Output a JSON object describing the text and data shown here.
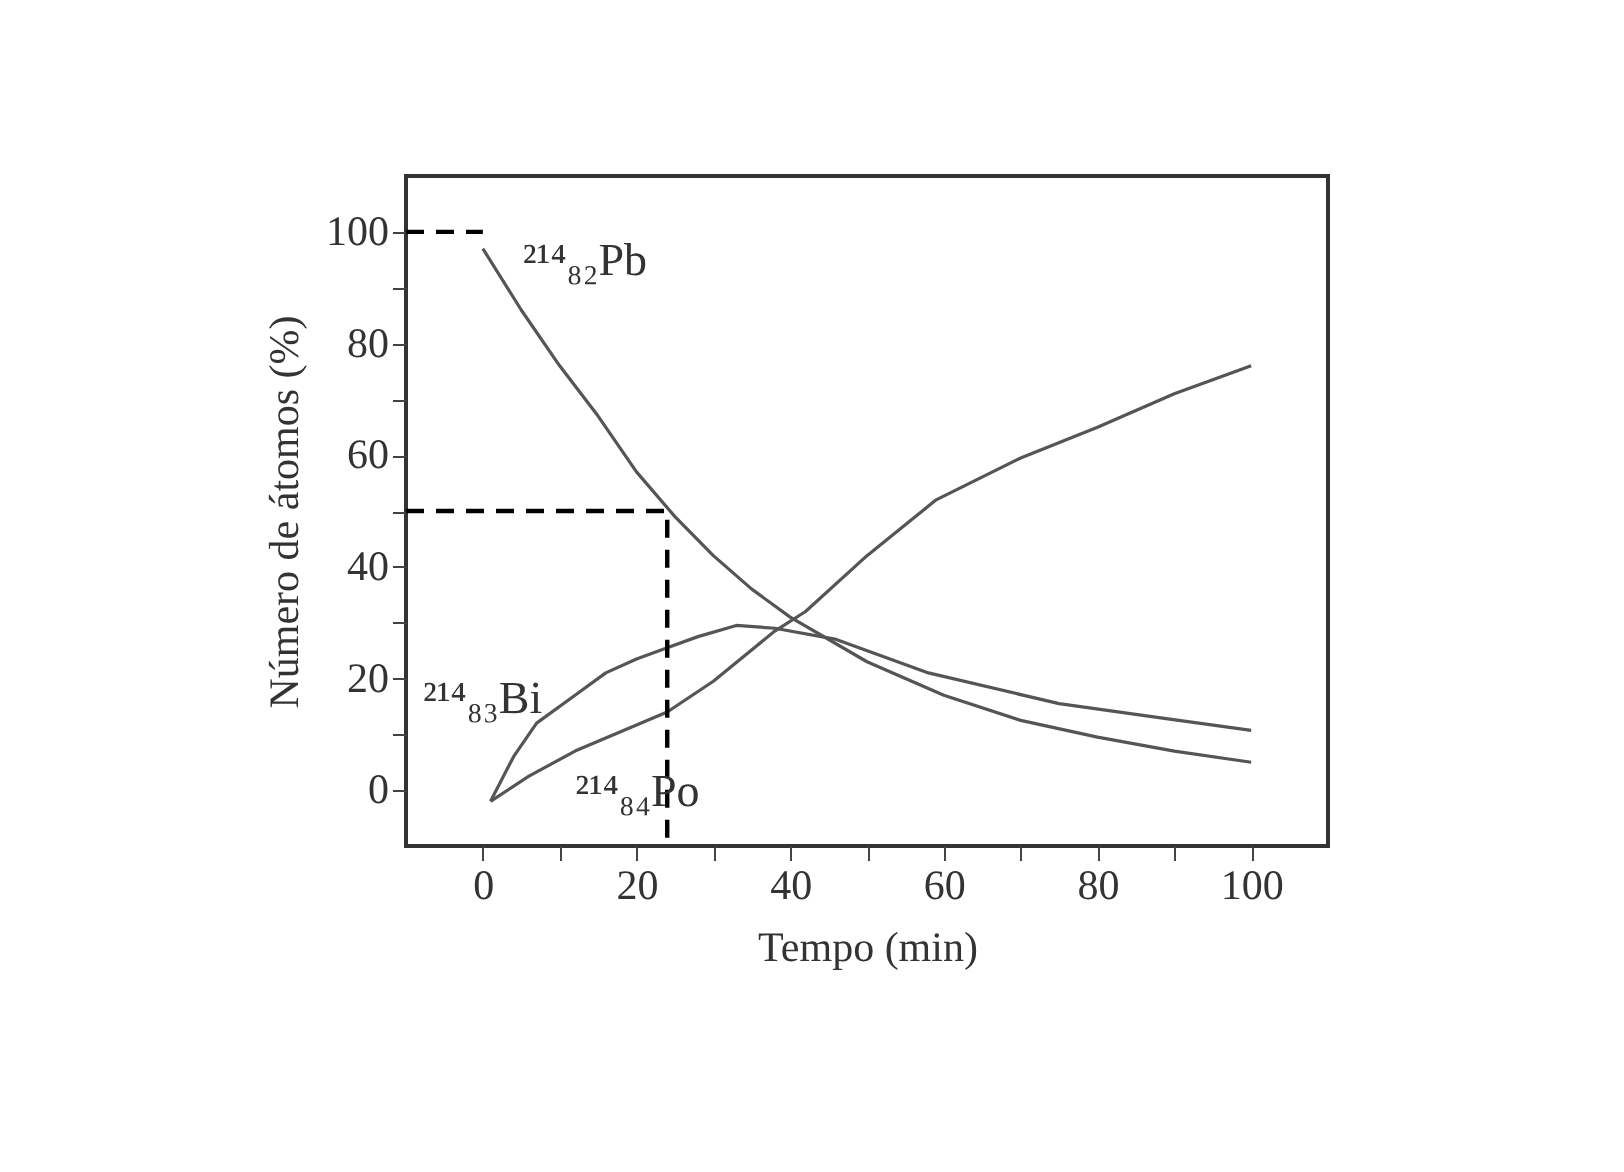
{
  "chart_data": {
    "type": "line",
    "xlabel": "Tempo (min)",
    "ylabel": "Número de átomos (%)",
    "xlim": [
      -10,
      110
    ],
    "ylim": [
      -10,
      110
    ],
    "xticks": [
      0,
      {
        "value": 10,
        "label": null
      },
      20,
      {
        "value": 30,
        "label": null
      },
      40,
      {
        "value": 50,
        "label": null
      },
      60,
      {
        "value": 70,
        "label": null
      },
      80,
      {
        "value": 90,
        "label": null
      },
      100
    ],
    "yticks": [
      0,
      {
        "value": 10,
        "label": null
      },
      20,
      {
        "value": 30,
        "label": null
      },
      40,
      {
        "value": 50,
        "label": null
      },
      60,
      {
        "value": 70,
        "label": null
      },
      80,
      {
        "value": 90,
        "label": null
      },
      100
    ],
    "series": [
      {
        "name": "²¹⁴₈₂Pb",
        "color": "#555555",
        "x": [
          0,
          5,
          10,
          15,
          20,
          25,
          30,
          35,
          40,
          50,
          60,
          70,
          80,
          90,
          100
        ],
        "values": [
          97,
          86,
          76,
          67,
          57,
          49,
          42,
          36,
          31,
          23,
          17,
          12.5,
          9.5,
          7,
          5
        ]
      },
      {
        "name": "²¹⁴₈₃Bi",
        "color": "#555555",
        "x": [
          1,
          4,
          7,
          12,
          16,
          20,
          24,
          28,
          33,
          38,
          46,
          58,
          75,
          88,
          100
        ],
        "values": [
          -2,
          6,
          12,
          17,
          21,
          23.5,
          25.5,
          27.5,
          29.5,
          29,
          27,
          21,
          15.5,
          13,
          10.7
        ]
      },
      {
        "name": "²¹⁴₈₄Po",
        "color": "#555555",
        "x": [
          1,
          6,
          12,
          18,
          24,
          30,
          38,
          42,
          50,
          59,
          70,
          80,
          90,
          100
        ],
        "values": [
          -2,
          2.5,
          7,
          10.5,
          14,
          19.5,
          28.5,
          32,
          42,
          52,
          59.5,
          65,
          71,
          76
        ]
      },
      {
        "color": "#000000",
        "line_style": "dashed",
        "x": [
          -10,
          0
        ],
        "values": [
          100,
          100
        ]
      },
      {
        "color": "#000000",
        "line_style": "dashed",
        "x": [
          -10,
          24,
          24
        ],
        "values": [
          50,
          50,
          -10
        ]
      }
    ]
  }
}
